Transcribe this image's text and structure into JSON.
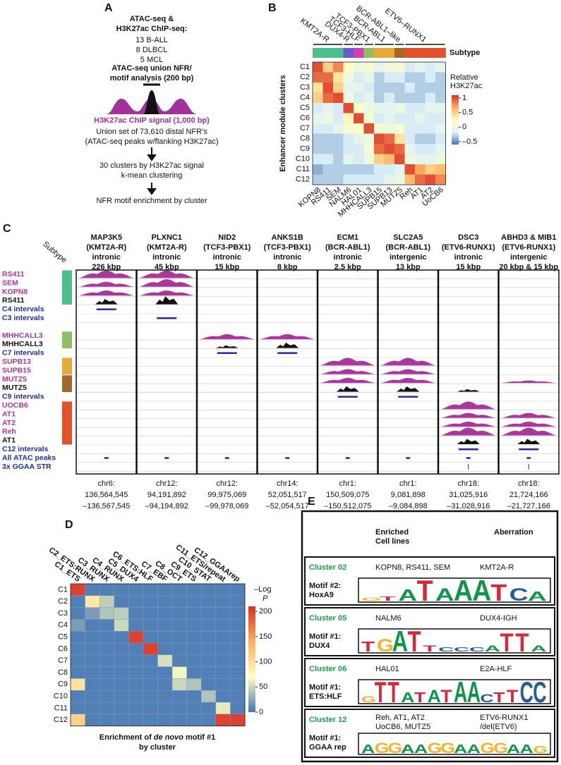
{
  "panel_a": {
    "label": "A",
    "heading": [
      "ATAC-seq &",
      "H3K27ac ChIP-seq:"
    ],
    "samples": [
      "13 B-ALL",
      "8 DLBCL",
      "5 MCL"
    ],
    "nfr_heading": [
      "ATAC-seq union NFR/",
      "motif analysis (200 bp)"
    ],
    "chip_signal": "H3K27ac ChIP signal (1,000 bp)",
    "union": [
      "Union set of 73,610 distal NFR's",
      "(ATAC-seq peaks w/flanking H3K27ac)"
    ],
    "clustering": [
      "30 clusters by H3K27ac signal",
      "k-mean clustering"
    ],
    "enrichment": "NFR motif enrichment by cluster"
  },
  "panel_b": {
    "label": "B",
    "type": "heatmap",
    "y_label": "Enhancer module clusters",
    "rows": [
      "C1",
      "C2",
      "C3",
      "C4",
      "C5",
      "C6",
      "C7",
      "C8",
      "C9",
      "C10",
      "C11",
      "C12"
    ],
    "columns": [
      "KOPN8",
      "RS411",
      "SEM",
      "NALM6",
      "HAL01",
      "MHHCALL3",
      "SUPB15",
      "SUPB13",
      "MUTZ5",
      "Reh",
      "AT1",
      "AT2",
      "UoCB6"
    ],
    "column_colors": [
      "#4dbf8f",
      "#4dbf8f",
      "#4dbf8f",
      "#6a5acd",
      "#d63fb0",
      "#8cc063",
      "#e8a93a",
      "#e8a93a",
      "#a06a2a",
      "#e2502c",
      "#e2502c",
      "#e2502c",
      "#e2502c"
    ],
    "subtype_labels": [
      "KMT2A-R",
      "DUX4-R",
      "TCF3-HLF",
      "TCF3-PBX1",
      "BCR-ABL1",
      "BCR-ABL1–like",
      "ETV6–RUNX1"
    ],
    "subtype_title": "Subtype",
    "legend_title": [
      "Relative",
      "H3K27ac"
    ],
    "values": [
      [
        1.0,
        0.5,
        0.8,
        0.2,
        0.0,
        0.1,
        -0.1,
        0.0,
        0.1,
        -0.2,
        -0.1,
        -0.2,
        -0.1
      ],
      [
        0.9,
        0.9,
        0.4,
        0.0,
        -0.2,
        -0.1,
        -0.3,
        -0.2,
        -0.2,
        -0.3,
        -0.3,
        -0.2,
        -0.3
      ],
      [
        0.4,
        1.0,
        0.5,
        -0.1,
        -0.1,
        -0.2,
        -0.3,
        -0.3,
        -0.3,
        -0.2,
        -0.3,
        -0.3,
        -0.3
      ],
      [
        0.5,
        0.9,
        1.0,
        0.0,
        -0.2,
        -0.1,
        -0.3,
        -0.2,
        -0.3,
        -0.3,
        -0.3,
        -0.2,
        -0.3
      ],
      [
        -0.2,
        -0.1,
        -0.2,
        1.0,
        0.2,
        0.0,
        -0.1,
        -0.1,
        0.0,
        -0.2,
        -0.2,
        -0.1,
        -0.1
      ],
      [
        -0.1,
        0.0,
        -0.2,
        0.3,
        1.0,
        0.1,
        -0.2,
        -0.1,
        -0.2,
        -0.2,
        -0.1,
        -0.2,
        -0.2
      ],
      [
        -0.2,
        -0.2,
        -0.1,
        0.1,
        0.2,
        1.0,
        0.1,
        0.0,
        0.1,
        -0.2,
        -0.2,
        -0.2,
        -0.1
      ],
      [
        -0.3,
        -0.3,
        -0.3,
        -0.2,
        -0.1,
        0.0,
        1.0,
        0.9,
        0.4,
        -0.2,
        -0.3,
        -0.3,
        -0.2
      ],
      [
        -0.3,
        -0.3,
        -0.3,
        -0.2,
        -0.2,
        0.1,
        0.9,
        1.0,
        0.9,
        -0.1,
        -0.2,
        -0.2,
        -0.1
      ],
      [
        -0.2,
        -0.2,
        -0.3,
        -0.1,
        -0.2,
        0.0,
        0.5,
        0.6,
        1.0,
        0.0,
        -0.1,
        -0.1,
        0.0
      ],
      [
        -0.4,
        -0.3,
        -0.3,
        -0.3,
        -0.3,
        -0.3,
        -0.2,
        -0.2,
        -0.1,
        1.0,
        0.7,
        0.5,
        0.6
      ],
      [
        -0.3,
        -0.3,
        -0.3,
        -0.2,
        -0.2,
        -0.2,
        -0.2,
        -0.1,
        0.0,
        0.6,
        0.9,
        1.0,
        0.8
      ]
    ],
    "zlim": [
      -0.6,
      1.1
    ],
    "zticks": [
      1,
      0.5,
      0,
      {
        "value": -0.5,
        "label": "–0.5"
      }
    ],
    "colors": [
      "#4575b4",
      "#e0f3f8",
      "#ffffbf",
      "#fdae61",
      "#d73027"
    ]
  },
  "panel_c": {
    "label": "C",
    "subtype_title": "Subtype",
    "loci": [
      {
        "gene": "MAP3K5",
        "subtype": "(KMT2A-R)",
        "location": "intronic",
        "size": "226 kbp",
        "chrom": "chr6:",
        "start": "136,564,545",
        "end": "–136,567,545"
      },
      {
        "gene": "PLXNC1",
        "subtype": "(KMT2A-R)",
        "location": "intronic",
        "size": "45 kbp",
        "chrom": "chr12:",
        "start": "94,191,892",
        "end": "–94,194,892"
      },
      {
        "gene": "NID2",
        "subtype": "(TCF3-PBX1)",
        "location": "intronic",
        "size": "15 kbp",
        "chrom": "chr12:",
        "start": "99,975,069",
        "end": "–99,978,069"
      },
      {
        "gene": "ANKS1B",
        "subtype": "(TCF3-PBX1)",
        "location": "intronic",
        "size": "8 kbp",
        "chrom": "chr14:",
        "start": "52,051,517",
        "end": "–52,054,517"
      },
      {
        "gene": "ECM1",
        "subtype": "(BCR-ABL1)",
        "location": "intronic",
        "size": "2.5 kbp",
        "chrom": "chr1:",
        "start": "150,509,075",
        "end": "–150,512,075"
      },
      {
        "gene": "SLC2A5",
        "subtype": "(BCR-ABL1)",
        "location": "intergenic",
        "size": "13 kbp",
        "chrom": "chr1:",
        "start": "9,081,898",
        "end": "–9,084,898"
      },
      {
        "gene": "DSC3",
        "subtype": "(ETV6-RUNX1)",
        "location": "intronic",
        "size": "15 kbp",
        "chrom": "chr18:",
        "start": "31,025,916",
        "end": "–31,028,916"
      },
      {
        "gene": "ABHD3 & MIB1",
        "subtype": "(ETV6-RUNX1)",
        "location": "intergenic",
        "size": "20 kbp & 15 kbp",
        "chrom": "chr18:",
        "start": "21,724,166",
        "end": "–21,727,166"
      }
    ],
    "tracks": [
      {
        "name": "RS411",
        "color": "#a8389c"
      },
      {
        "name": "SEM",
        "color": "#a8389c"
      },
      {
        "name": "KOPN8",
        "color": "#a8389c"
      },
      {
        "name": "RS411",
        "color": "#111111"
      },
      {
        "name": "C4 intervals",
        "color": "#1f2e9c"
      },
      {
        "name": "C3 intervals",
        "color": "#1f2e9c"
      },
      {
        "name": "MHHCALL3",
        "color": "#a8389c"
      },
      {
        "name": "MHHCALL3",
        "color": "#111111"
      },
      {
        "name": "C7 intervals",
        "color": "#1f2e9c"
      },
      {
        "name": "SUPB13",
        "color": "#a8389c"
      },
      {
        "name": "SUPB15",
        "color": "#a8389c"
      },
      {
        "name": "MUTZ5",
        "color": "#a8389c"
      },
      {
        "name": "MUTZ5",
        "color": "#111111"
      },
      {
        "name": "C9 intervals",
        "color": "#1f2e9c"
      },
      {
        "name": "UOCB6",
        "color": "#a8389c"
      },
      {
        "name": "AT1",
        "color": "#a8389c"
      },
      {
        "name": "AT2",
        "color": "#a8389c"
      },
      {
        "name": "Reh",
        "color": "#a8389c"
      },
      {
        "name": "AT1",
        "color": "#111111"
      },
      {
        "name": "C12 intervals",
        "color": "#1f2e9c"
      },
      {
        "name": "All ATAC peaks",
        "color": "#1f2e9c"
      },
      {
        "name": "3x GGAA STR",
        "color": "#1f2e9c"
      }
    ]
  },
  "panel_d": {
    "label": "D",
    "type": "heatmap",
    "rows": [
      "C1",
      "C2",
      "C3",
      "C4",
      "C5",
      "C6",
      "C7",
      "C8",
      "C9",
      "C10",
      "C11",
      "C12"
    ],
    "columns": [
      "C1_ETS",
      "C2_ETS:RUNX",
      "C3_RUNX",
      "C4_RUNX",
      "C5_DUX4",
      "C6_ETS:HLF",
      "C7_EBF",
      "C8_OCT",
      "C9_ETS",
      "C10_STAT",
      "C11_ETS/repeat",
      "C12_GGAArep"
    ],
    "values": [
      [
        200,
        5,
        5,
        5,
        5,
        5,
        5,
        5,
        5,
        5,
        5,
        5
      ],
      [
        5,
        90,
        45,
        5,
        5,
        5,
        5,
        5,
        5,
        5,
        5,
        5
      ],
      [
        5,
        20,
        40,
        45,
        5,
        5,
        5,
        5,
        5,
        5,
        5,
        5
      ],
      [
        20,
        5,
        5,
        50,
        5,
        5,
        5,
        5,
        5,
        5,
        5,
        5
      ],
      [
        5,
        5,
        5,
        5,
        200,
        5,
        5,
        5,
        5,
        5,
        5,
        5
      ],
      [
        5,
        5,
        5,
        5,
        5,
        200,
        5,
        5,
        5,
        5,
        5,
        5
      ],
      [
        5,
        5,
        5,
        5,
        5,
        5,
        55,
        5,
        5,
        5,
        5,
        5
      ],
      [
        5,
        5,
        5,
        5,
        5,
        5,
        5,
        65,
        5,
        5,
        5,
        5
      ],
      [
        95,
        5,
        5,
        5,
        5,
        5,
        5,
        50,
        40,
        5,
        5,
        5
      ],
      [
        5,
        5,
        5,
        5,
        5,
        5,
        5,
        5,
        5,
        40,
        5,
        5
      ],
      [
        5,
        5,
        5,
        5,
        5,
        5,
        5,
        5,
        5,
        5,
        60,
        5
      ],
      [
        110,
        5,
        5,
        5,
        5,
        5,
        5,
        5,
        5,
        5,
        200,
        200
      ]
    ],
    "zlim": [
      0,
      210
    ],
    "zticks": [
      200,
      150,
      100,
      50,
      0
    ],
    "colors": [
      "#4575b4",
      "#ffffbf",
      "#fdae61",
      "#d73027"
    ],
    "legend_title": [
      "–Log",
      "P"
    ],
    "caption": [
      [
        "Enrichment of ",
        "de novo",
        " motif #1"
      ],
      "by cluster"
    ]
  },
  "panel_e": {
    "label": "E",
    "header": {
      "cell_lines": [
        "Enriched",
        "Cell lines"
      ],
      "aberration": "Aberration"
    },
    "logo_colors": {
      "A": "#109648",
      "C": "#255c99",
      "G": "#f7b32b",
      "T": "#d62839"
    },
    "clusters": [
      {
        "name": "Cluster 02",
        "cell_lines": [
          "KOPN8, RS411, SEM"
        ],
        "aberration": [
          "KMT2A-R"
        ],
        "motif": [
          "Motif #2:",
          "HoxA9"
        ],
        "logo": [
          "G",
          "T",
          "A",
          "T",
          "A",
          "A",
          "A",
          "T",
          "C",
          "A"
        ]
      },
      {
        "name": "Cluster 05",
        "cell_lines": [
          "NALM6"
        ],
        "aberration": [
          "DUX4-IGH"
        ],
        "motif": [
          "Motif #1:",
          "DUX4"
        ],
        "logo": [
          "T",
          "G",
          "A",
          "T",
          "T",
          "C",
          "C",
          "C",
          "A",
          "T",
          "T",
          "A"
        ]
      },
      {
        "name": "Cluster 06",
        "cell_lines": [
          "HAL01"
        ],
        "aberration": [
          "E2A-HLF"
        ],
        "motif": [
          "Motif #1:",
          "ETS:HLF"
        ],
        "logo": [
          "G",
          "T",
          "T",
          "A",
          "T",
          "A",
          "T",
          "A",
          "A",
          "C",
          "T",
          "T",
          "C",
          "C"
        ]
      },
      {
        "name": "Cluster 12",
        "cell_lines": [
          "Reh, AT1, AT2",
          "UoCB6, MUTZ5"
        ],
        "aberration": [
          "ETV6-RUNX1",
          "/del(ETV6)"
        ],
        "motif": [
          "Motif #1:",
          "GGAA rep"
        ],
        "logo": [
          "A",
          "G",
          "G",
          "A",
          "A",
          "G",
          "G",
          "A",
          "A",
          "G",
          "G",
          "A",
          "A",
          "G"
        ]
      }
    ]
  }
}
